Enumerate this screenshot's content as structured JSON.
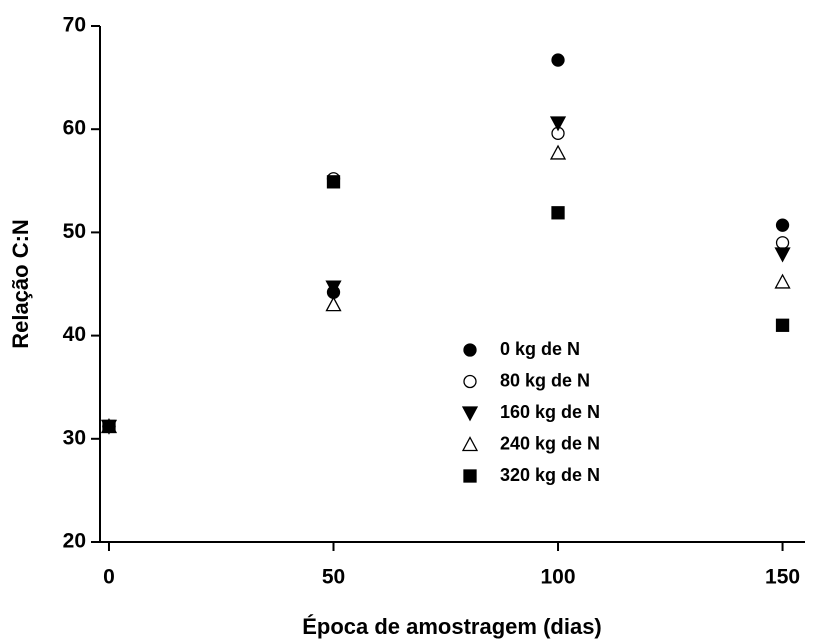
{
  "chart_data": {
    "type": "scatter",
    "x_label": "Época de amostragem (dias)",
    "y_label": "Relação C:N",
    "xlim": [
      -2,
      155
    ],
    "xticks": [
      0,
      50,
      100,
      150
    ],
    "ylim": [
      20,
      70
    ],
    "yticks": [
      20,
      30,
      40,
      50,
      60,
      70
    ],
    "legend_position": "center-right",
    "series": [
      {
        "name": "0 kg de N",
        "color": "#000000",
        "marker": "circle-filled",
        "x": [
          0,
          50,
          100,
          150
        ],
        "values": [
          31.2,
          44.2,
          66.7,
          50.7
        ]
      },
      {
        "name": "80 kg de N",
        "color": "#000000",
        "marker": "circle-open",
        "x": [
          0,
          50,
          100,
          150
        ],
        "values": [
          31.2,
          55.2,
          59.6,
          49.0
        ]
      },
      {
        "name": "160 kg de N",
        "color": "#000000",
        "marker": "triangle-down-filled",
        "x": [
          0,
          50,
          100,
          150
        ],
        "values": [
          31.2,
          44.7,
          60.6,
          47.9
        ]
      },
      {
        "name": "240 kg de N",
        "color": "#000000",
        "marker": "triangle-up-open",
        "x": [
          0,
          50,
          100,
          150
        ],
        "values": [
          31.2,
          43.0,
          57.7,
          45.2
        ]
      },
      {
        "name": "320 kg de N",
        "color": "#000000",
        "marker": "square-filled",
        "x": [
          0,
          50,
          100,
          150
        ],
        "values": [
          31.2,
          54.9,
          51.9,
          41.0
        ]
      }
    ]
  }
}
